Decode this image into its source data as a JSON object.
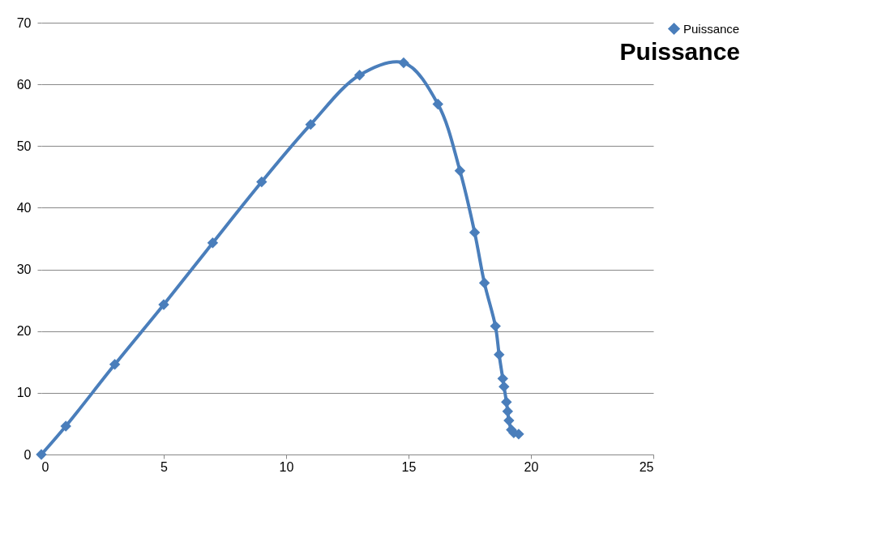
{
  "chart_data": {
    "type": "line",
    "title": "Puissance",
    "series": [
      {
        "name": "Puissance",
        "color": "#4a7ebb",
        "x": [
          0,
          1,
          3,
          5,
          7,
          9,
          11,
          13,
          14.8,
          16.2,
          17.1,
          17.7,
          18.1,
          18.55,
          18.7,
          18.85,
          18.9,
          19,
          19.05,
          19.1,
          19.2,
          19.3,
          19.5
        ],
        "values": [
          0,
          4.6,
          14.6,
          24.3,
          34.3,
          44.2,
          53.5,
          61.5,
          63.5,
          56.8,
          46,
          36,
          27.8,
          20.8,
          16.2,
          12.3,
          11,
          8.5,
          7,
          5.5,
          4,
          3.5,
          3.3
        ]
      }
    ],
    "xlim": [
      0,
      25
    ],
    "xticks": [
      0,
      5,
      10,
      15,
      20,
      25
    ],
    "ylim": [
      0,
      70
    ],
    "yticks": [
      0,
      10,
      20,
      30,
      40,
      50,
      60,
      70
    ],
    "grid": "y",
    "legend": "right",
    "marker": "diamond",
    "line_style": "solid"
  }
}
